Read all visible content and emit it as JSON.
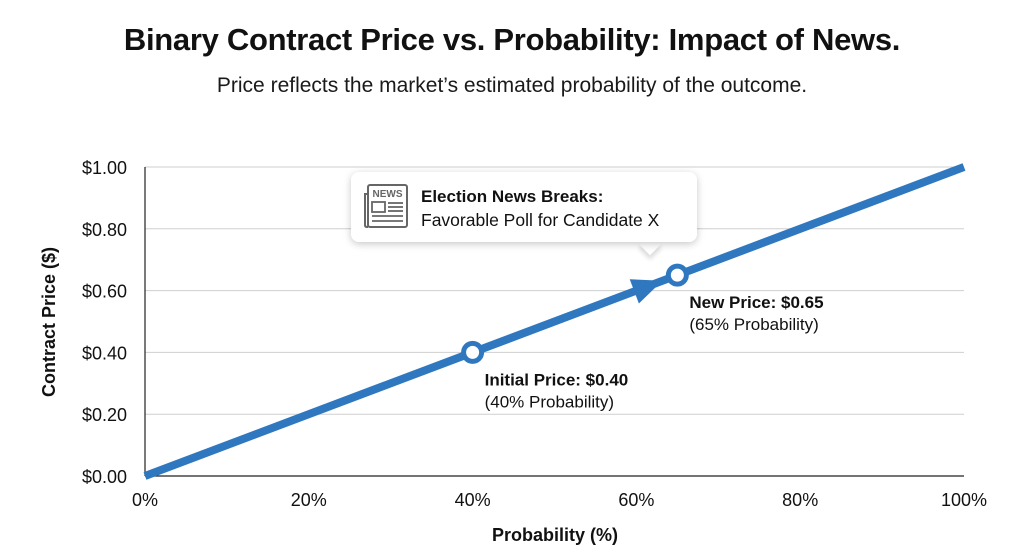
{
  "chart_data": {
    "type": "line",
    "title": "Binary Contract Price vs. Probability: Impact of News.",
    "subtitle": "Price reflects the market’s estimated probability of the outcome.",
    "xlabel": "Probability (%)",
    "ylabel": "Contract Price ($)",
    "xlim": [
      0,
      100
    ],
    "ylim": [
      0,
      1
    ],
    "x_ticks": [
      0,
      20,
      40,
      60,
      80,
      100
    ],
    "x_tick_labels": [
      "0%",
      "20%",
      "40%",
      "60%",
      "80%",
      "100%"
    ],
    "y_ticks": [
      0,
      0.2,
      0.4,
      0.6,
      0.8,
      1.0
    ],
    "y_tick_labels": [
      "$0.00",
      "$0.20",
      "$0.40",
      "$0.60",
      "$0.80",
      "$1.00"
    ],
    "grid": true,
    "series": [
      {
        "name": "Contract Price",
        "color": "#2f78c0",
        "x": [
          0,
          100
        ],
        "y": [
          0,
          1.0
        ]
      }
    ],
    "points": [
      {
        "name": "initial",
        "x": 40,
        "y": 0.4,
        "label": "Initial Price: $0.40",
        "sublabel": "(40% Probability)"
      },
      {
        "name": "new",
        "x": 65,
        "y": 0.65,
        "label": "New Price: $0.65",
        "sublabel": "(65% Probability)"
      }
    ],
    "arrow": {
      "from_x": 40,
      "to_x": 65
    },
    "callout": {
      "icon": "newspaper-icon",
      "icon_text": "NEWS",
      "title": "Election News Breaks:",
      "body": "Favorable Poll for Candidate X"
    }
  }
}
